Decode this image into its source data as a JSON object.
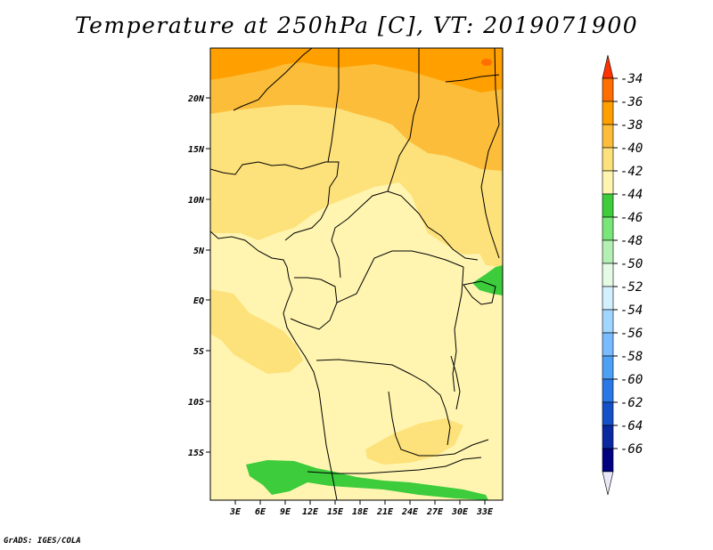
{
  "title": "Temperature at 250hPa [C], VT: 2019071900",
  "footer": "GrADS: IGES/COLA",
  "map": {
    "lat_labels": [
      "20N",
      "15N",
      "10N",
      "5N",
      "EQ",
      "5S",
      "10S",
      "15S"
    ],
    "lon_labels": [
      "3E",
      "6E",
      "9E",
      "12E",
      "15E",
      "18E",
      "21E",
      "24E",
      "27E",
      "30E",
      "33E"
    ]
  },
  "colorbar": {
    "labels": [
      "-34",
      "-36",
      "-38",
      "-40",
      "-42",
      "-44",
      "-46",
      "-48",
      "-50",
      "-52",
      "-54",
      "-56",
      "-58",
      "-60",
      "-62",
      "-64",
      "-66"
    ],
    "colors": [
      "#ff3200",
      "#ff6e00",
      "#ffa000",
      "#fcbd3a",
      "#fde17a",
      "#fff5b0",
      "#3ccc3c",
      "#78e678",
      "#b4f0b4",
      "#e6fbe6",
      "#d2f0ff",
      "#a0d6ff",
      "#78bcff",
      "#4ea0f5",
      "#2a78e6",
      "#1450c8",
      "#0a28a0",
      "#000080",
      "#e8e8f8"
    ]
  }
}
